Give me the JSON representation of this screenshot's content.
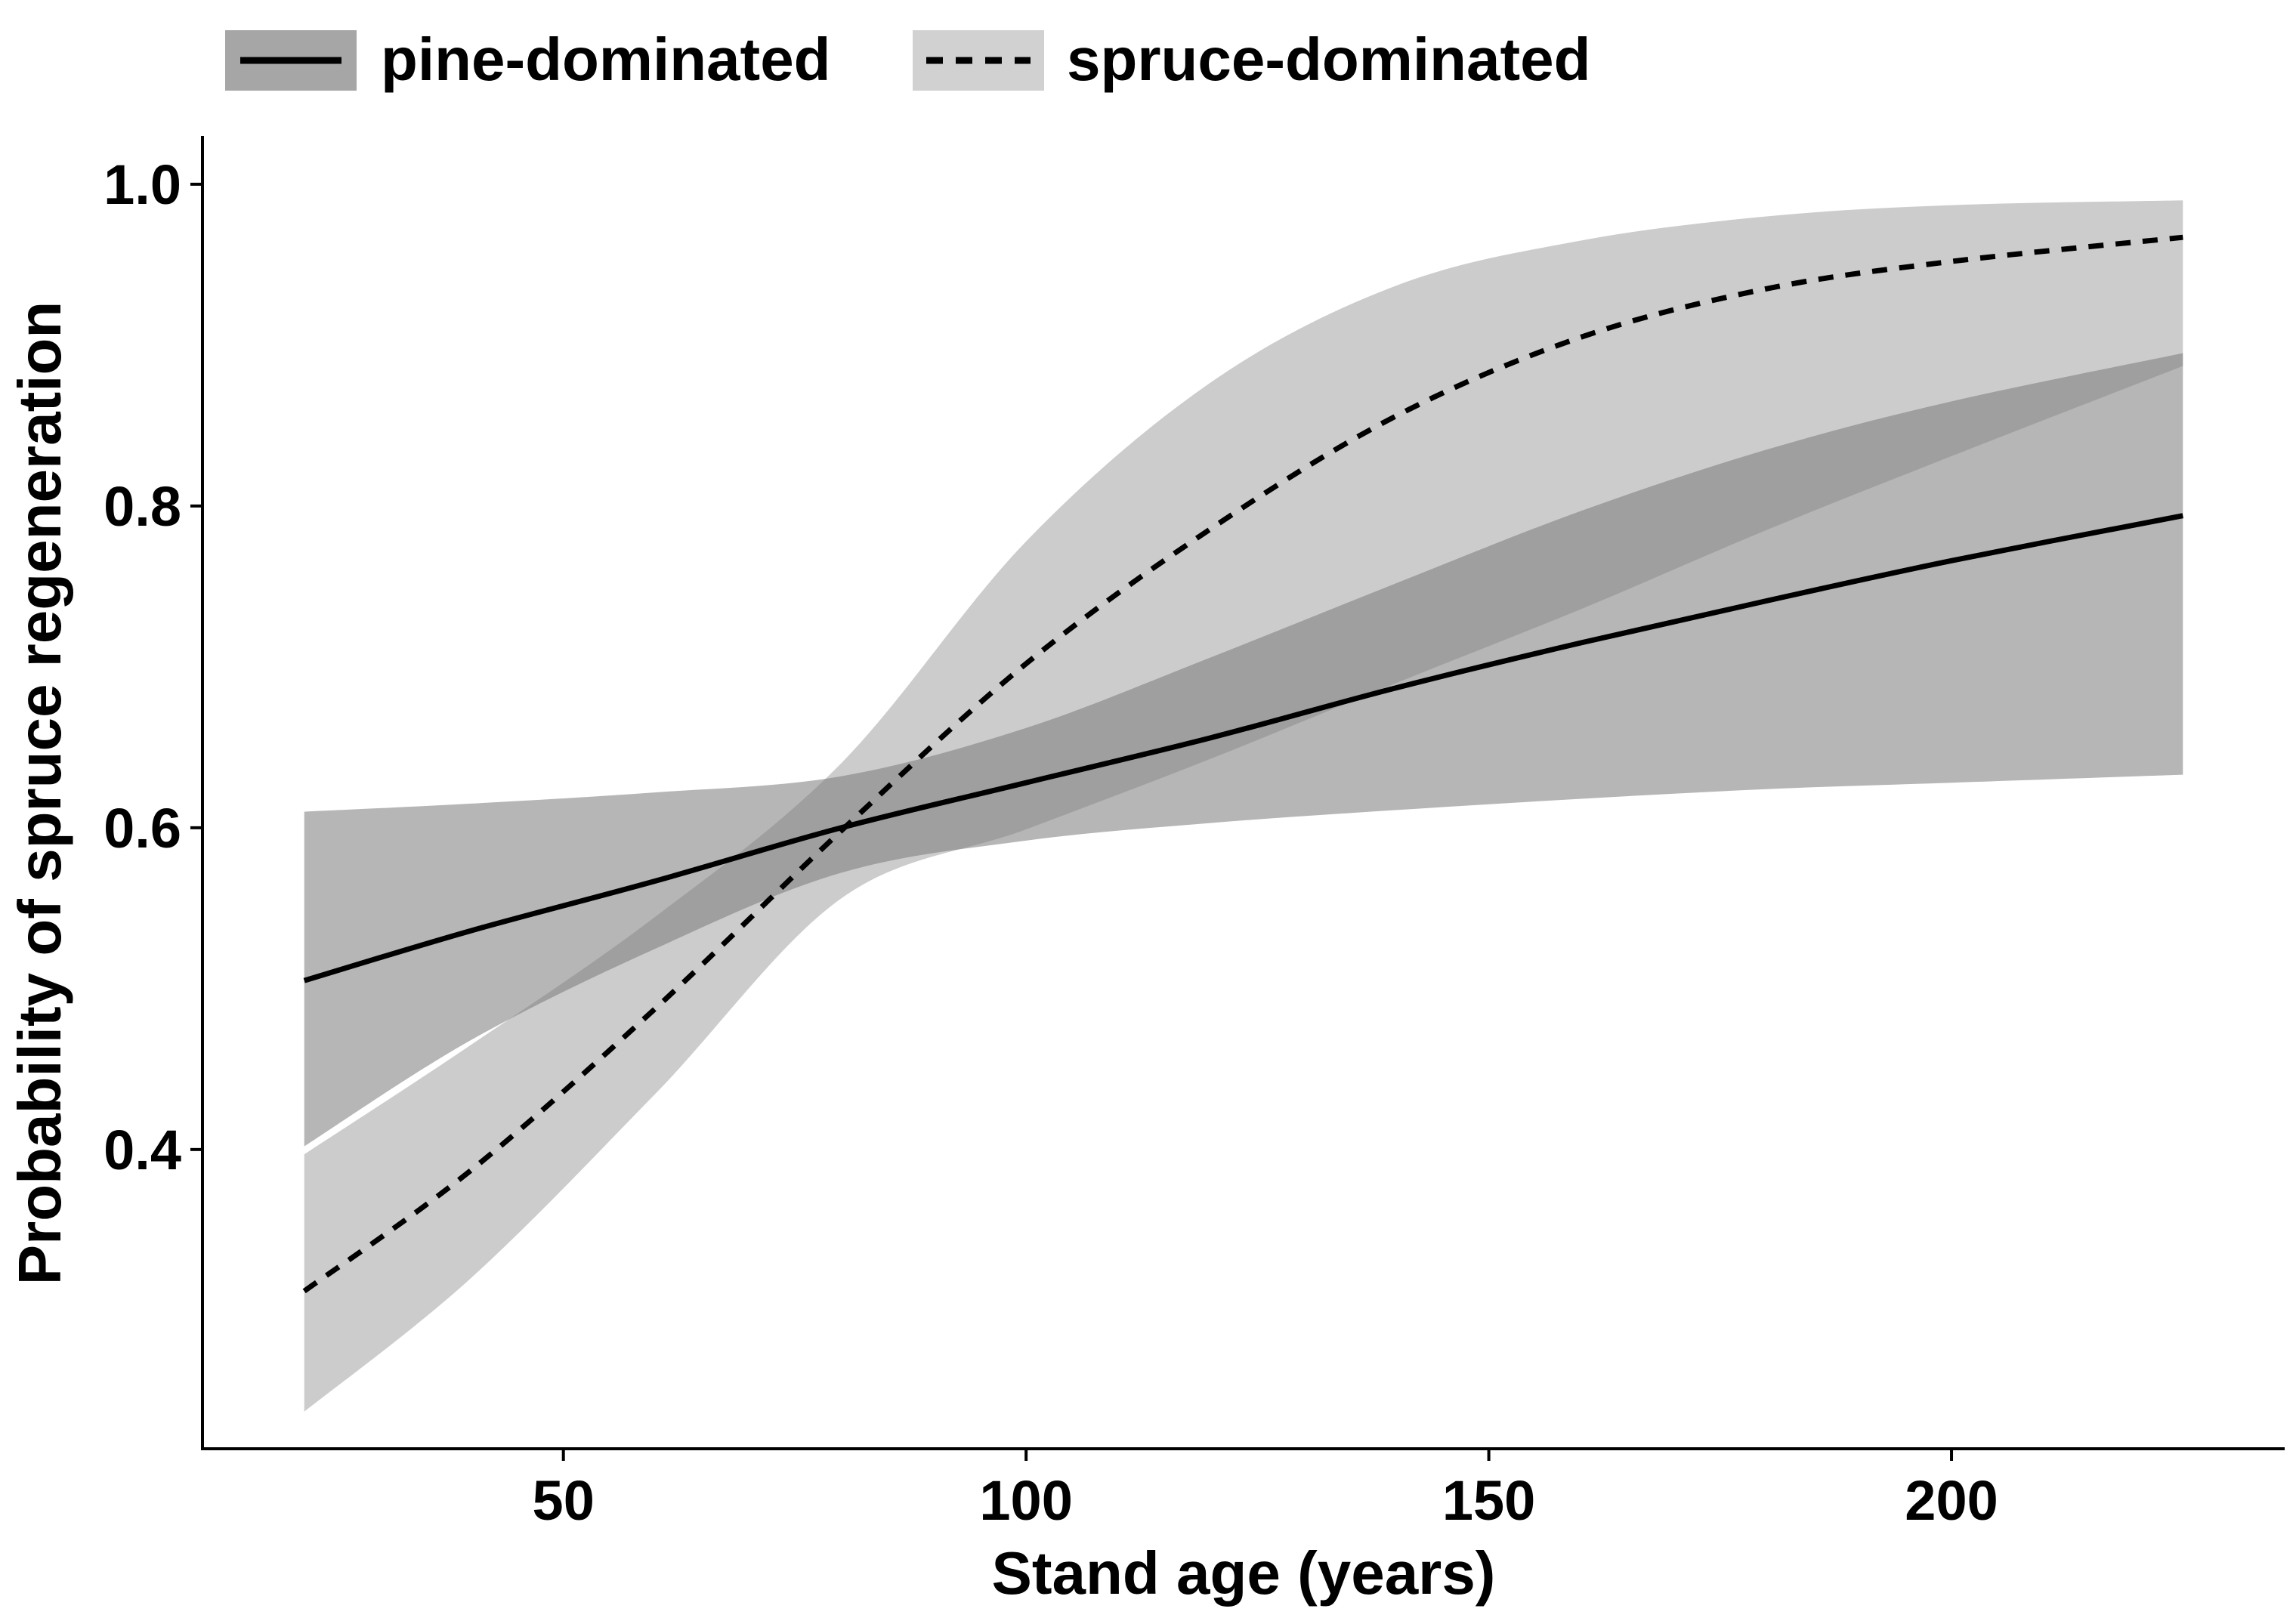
{
  "chart_data": {
    "type": "line",
    "title": "",
    "xlabel": "Stand age (years)",
    "ylabel": "Probability of spruce regeneration",
    "xlim": [
      11,
      236
    ],
    "ylim": [
      0.214,
      1.03
    ],
    "xticks": [
      50,
      100,
      150,
      200
    ],
    "yticks": [
      0.4,
      0.6,
      0.8,
      1.0
    ],
    "xtick_labels": [
      "50",
      "100",
      "150",
      "200"
    ],
    "ytick_labels": [
      "0.4",
      "0.6",
      "0.8",
      "1.0"
    ],
    "grid": false,
    "legend_position": "top",
    "series": [
      {
        "name": "pine-dominated",
        "line_style": "solid",
        "ribbon_color": "#a6a6a6",
        "line_color": "#000000",
        "x": [
          22,
          40,
          60,
          80,
          100,
          120,
          140,
          160,
          180,
          200,
          225
        ],
        "y": [
          0.505,
          0.536,
          0.567,
          0.6,
          0.628,
          0.656,
          0.687,
          0.715,
          0.741,
          0.766,
          0.794
        ],
        "lower": [
          0.402,
          0.468,
          0.525,
          0.572,
          0.592,
          0.603,
          0.611,
          0.618,
          0.624,
          0.628,
          0.633
        ],
        "upper": [
          0.61,
          0.615,
          0.622,
          0.632,
          0.662,
          0.706,
          0.752,
          0.797,
          0.835,
          0.865,
          0.895
        ]
      },
      {
        "name": "spruce-dominated",
        "line_style": "dashed",
        "ribbon_color": "#d1d1d1",
        "line_color": "#000000",
        "x": [
          22,
          40,
          60,
          80,
          100,
          120,
          140,
          160,
          180,
          200,
          225
        ],
        "y": [
          0.312,
          0.387,
          0.488,
          0.598,
          0.702,
          0.786,
          0.856,
          0.905,
          0.935,
          0.952,
          0.967
        ],
        "lower": [
          0.237,
          0.32,
          0.435,
          0.556,
          0.599,
          0.643,
          0.69,
          0.736,
          0.785,
          0.831,
          0.887
        ],
        "upper": [
          0.397,
          0.465,
          0.545,
          0.64,
          0.778,
          0.877,
          0.937,
          0.965,
          0.98,
          0.987,
          0.99
        ]
      }
    ]
  }
}
